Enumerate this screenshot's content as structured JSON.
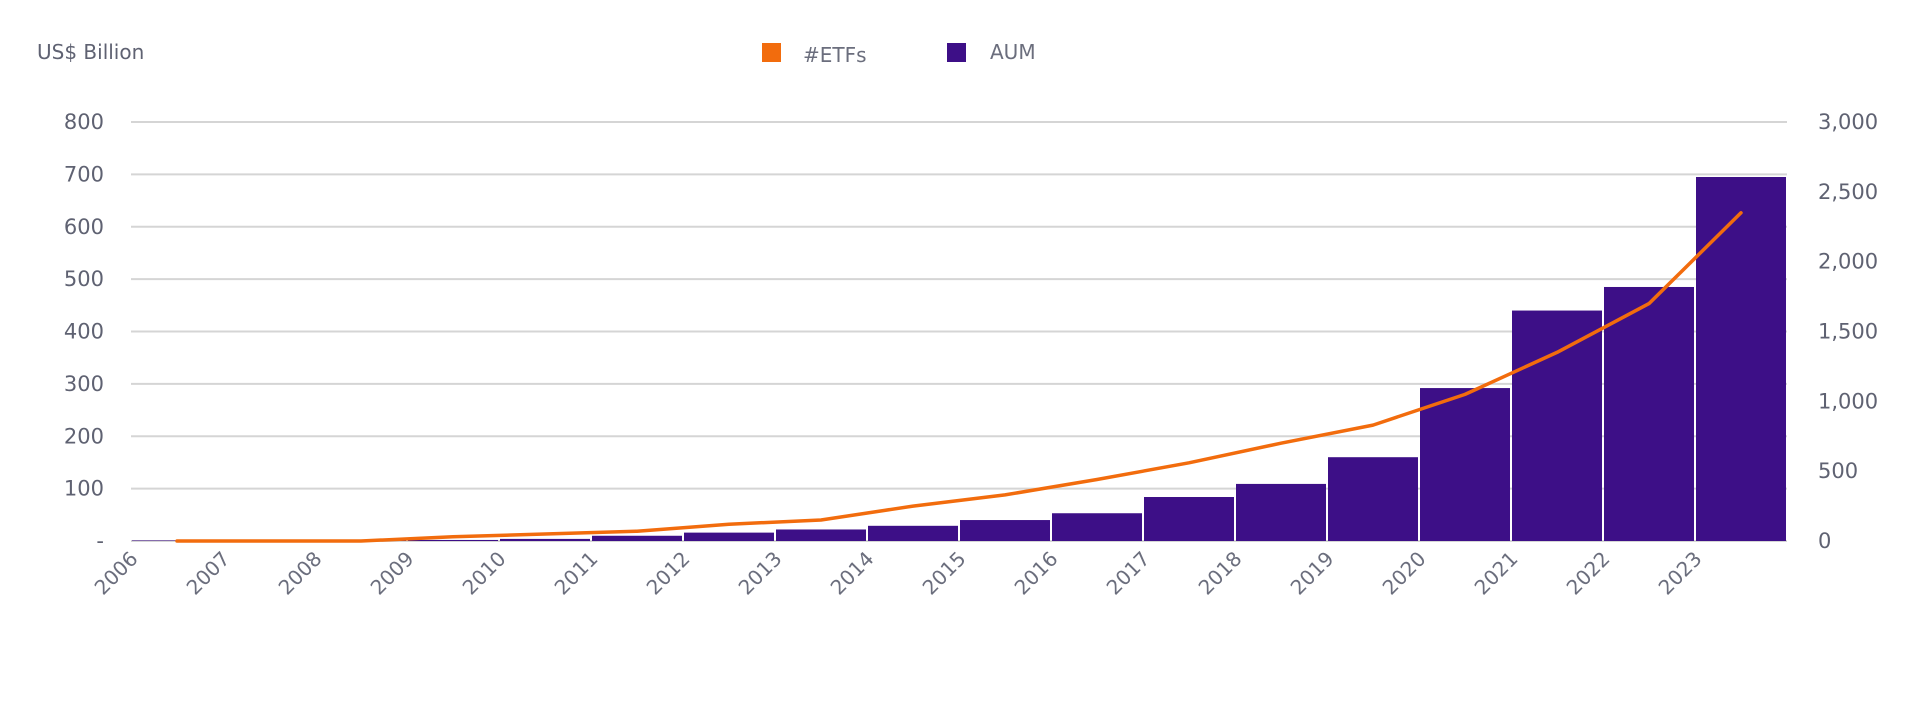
{
  "chart_data": {
    "type": "bar",
    "y_unit_label": "US$ Billion",
    "categories": [
      "2006",
      "2007",
      "2008",
      "2009",
      "2010",
      "2011",
      "2012",
      "2013",
      "2014",
      "2015",
      "2016",
      "2017",
      "2018",
      "2019",
      "2020",
      "2021",
      "2022",
      "2023"
    ],
    "series": [
      {
        "name": "AUM",
        "type": "bar",
        "axis": "left",
        "color": "#3d0f87",
        "values": [
          1,
          1,
          1,
          2,
          4,
          10,
          16,
          22,
          29,
          40,
          53,
          84,
          109,
          160,
          292,
          440,
          485,
          695
        ]
      },
      {
        "name": "#ETFs",
        "type": "line",
        "axis": "right",
        "color": "#f26c0d",
        "values": [
          0,
          0,
          0,
          30,
          50,
          70,
          120,
          150,
          250,
          330,
          440,
          560,
          700,
          830,
          1050,
          1350,
          1700,
          2350
        ]
      }
    ],
    "y_left": {
      "range": [
        0,
        800
      ],
      "ticks": [
        0,
        100,
        200,
        300,
        400,
        500,
        600,
        700,
        800
      ],
      "tick_labels": [
        "-",
        "100",
        "200",
        "300",
        "400",
        "500",
        "600",
        "700",
        "800"
      ]
    },
    "y_right": {
      "range": [
        0,
        3000
      ],
      "ticks": [
        0,
        500,
        1000,
        1500,
        2000,
        2500,
        3000
      ],
      "tick_labels": [
        "0",
        "500",
        "1,000",
        "1,500",
        "2,000",
        "2,500",
        "3,000"
      ]
    },
    "legend": {
      "placement": "top-center",
      "items": [
        {
          "label": "#ETFs",
          "color": "#f26c0d"
        },
        {
          "label": "AUM",
          "color": "#3d0f87"
        }
      ]
    },
    "grid": true
  }
}
